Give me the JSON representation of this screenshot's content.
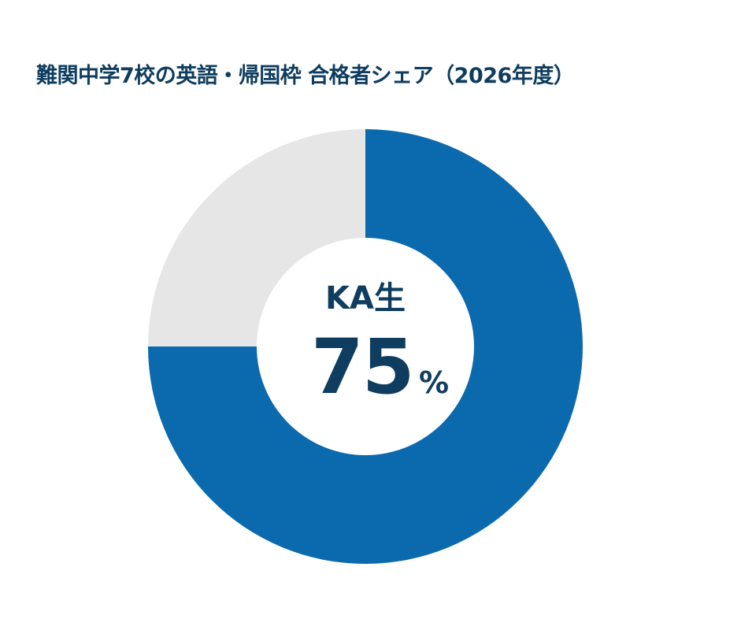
{
  "chart_data": {
    "type": "pie",
    "variant": "donut",
    "title": "難関中学7校の英語・帰国枠 合格者シェア（2026年度）",
    "slices": [
      {
        "label": "KA生",
        "value": 75,
        "color": "#0b69ad"
      },
      {
        "value": 25,
        "color": "#e6e6e6"
      }
    ],
    "center_label": "KA生",
    "center_value": "75",
    "center_unit": "%"
  }
}
